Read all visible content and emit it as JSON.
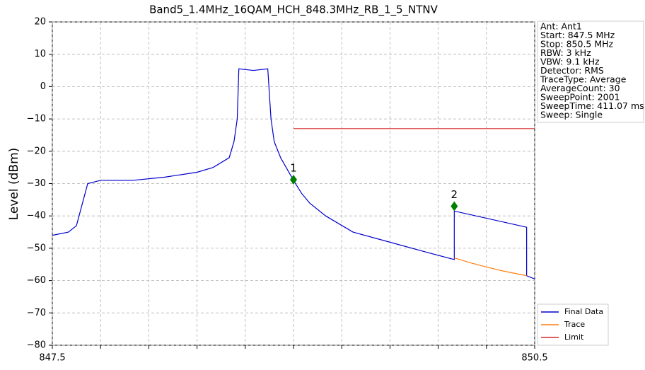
{
  "chart_data": {
    "type": "line",
    "title": "Band5_1.4MHz_16QAM_HCH_848.3MHz_RB_1_5_NTNV",
    "y_label": "Level (dBm)",
    "xlim": [
      847.5,
      850.5
    ],
    "ylim": [
      -80,
      20
    ],
    "xticks": [
      847.5,
      {
        "value": 847.8,
        "label": null
      },
      {
        "value": 848.1,
        "label": null
      },
      {
        "value": 848.4,
        "label": null
      },
      {
        "value": 848.7,
        "label": null
      },
      {
        "value": 849.0,
        "label": null
      },
      {
        "value": 849.3,
        "label": null
      },
      {
        "value": 849.6,
        "label": null
      },
      {
        "value": 849.9,
        "label": null
      },
      {
        "value": 850.2,
        "label": null
      },
      850.5
    ],
    "yticks": [
      {
        "value": -80,
        "label": "−80"
      },
      {
        "value": -70,
        "label": "−70"
      },
      {
        "value": -60,
        "label": "−60"
      },
      {
        "value": -50,
        "label": "−50"
      },
      {
        "value": -40,
        "label": "−40"
      },
      {
        "value": -30,
        "label": "−30"
      },
      {
        "value": -20,
        "label": "−20"
      },
      {
        "value": -10,
        "label": "−10"
      },
      0,
      10,
      20
    ],
    "grid": true,
    "legend": "lower right",
    "series": [
      {
        "name": "Final Data",
        "color": "#0000cc",
        "x": [
          847.5,
          847.6,
          847.65,
          847.72,
          847.8,
          848.0,
          848.2,
          848.4,
          848.5,
          848.6,
          848.63,
          848.65,
          848.66,
          848.75,
          848.84,
          848.86,
          848.88,
          848.92,
          849.0,
          849.05,
          849.1,
          849.2,
          849.37,
          849.59,
          849.81,
          850.0,
          850.0,
          850.45,
          850.45,
          850.5
        ],
        "values": [
          -46,
          -45,
          -43,
          -30,
          -29,
          -29,
          -28,
          -26.5,
          -25,
          -22,
          -17,
          -10,
          5.5,
          5,
          5.5,
          -10,
          -17,
          -22,
          -29,
          -33,
          -36,
          -40,
          -45,
          -48,
          -51,
          -53.5,
          -38.5,
          -43.5,
          -58.5,
          -59.5
        ]
      },
      {
        "name": "Trace",
        "color": "#ff7f0e",
        "x": [
          850.0,
          850.1,
          850.2,
          850.3,
          850.45
        ],
        "values": [
          -53,
          -54.5,
          -55.8,
          -57,
          -58.5
        ]
      },
      {
        "name": "Limit",
        "color": "#d62728",
        "x": [
          849.0,
          850.5
        ],
        "values": [
          -13,
          -13
        ]
      }
    ],
    "markers": [
      {
        "label": "1",
        "x": 849.0,
        "y": -28.8,
        "color": "#008000"
      },
      {
        "label": "2",
        "x": 850.0,
        "y": -37,
        "color": "#008000"
      }
    ],
    "info": [
      "Ant: Ant1",
      "Start: 847.5 MHz",
      "Stop: 850.5 MHz",
      "RBW: 3 kHz",
      "VBW: 9.1 kHz",
      "Detector: RMS",
      "TraceType: Average",
      "AverageCount: 30",
      "SweepPoint: 2001",
      "SweepTime: 411.07 ms",
      "Sweep: Single"
    ]
  }
}
